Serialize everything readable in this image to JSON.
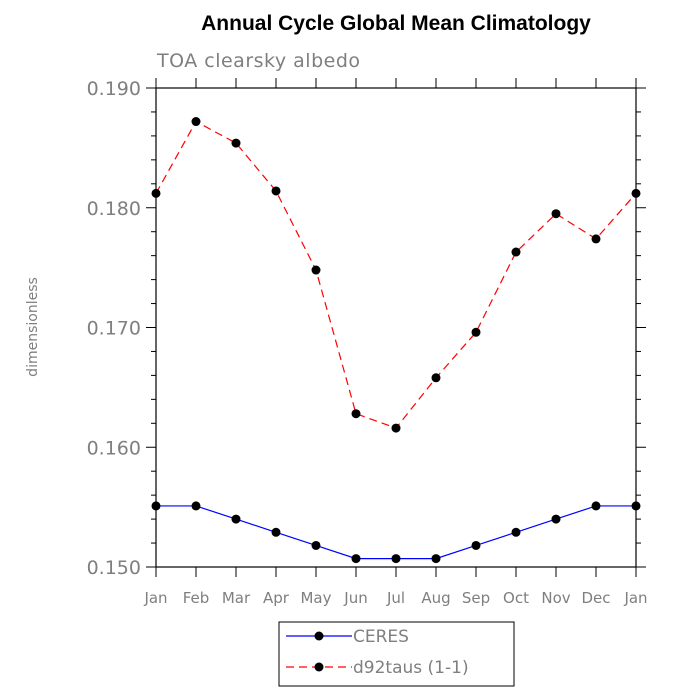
{
  "chart_data": {
    "type": "line",
    "title": "Annual Cycle Global Mean Climatology",
    "subtitle": "TOA clearsky albedo",
    "xlabel": "",
    "ylabel": "dimensionless",
    "categories": [
      "Jan",
      "Feb",
      "Mar",
      "Apr",
      "May",
      "Jun",
      "Jul",
      "Aug",
      "Sep",
      "Oct",
      "Nov",
      "Dec",
      "Jan"
    ],
    "ylim": [
      0.15,
      0.19
    ],
    "yticks": [
      "0.150",
      "0.160",
      "0.170",
      "0.180",
      "0.190"
    ],
    "y_minor_step": 0.002,
    "grid": false,
    "legend_position": "bottom-center",
    "series": [
      {
        "name": "CERES",
        "color": "#0000ff",
        "dash": "solid",
        "values": [
          0.1551,
          0.1551,
          0.154,
          0.1529,
          0.1518,
          0.1507,
          0.1507,
          0.1507,
          0.1518,
          0.1529,
          0.154,
          0.1551,
          0.1551
        ]
      },
      {
        "name": "d92taus (1-1)",
        "color": "#ff0000",
        "dash": "dashed",
        "values": [
          0.1812,
          0.1872,
          0.1854,
          0.1814,
          0.1748,
          0.1628,
          0.1616,
          0.1658,
          0.1696,
          0.1763,
          0.1795,
          0.1774,
          0.1812
        ]
      }
    ]
  }
}
